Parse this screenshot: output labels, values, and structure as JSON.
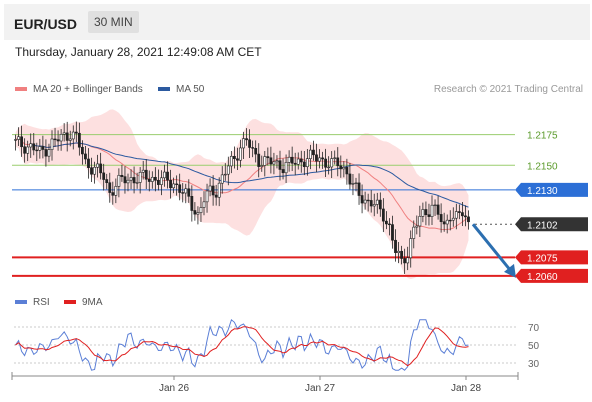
{
  "header": {
    "symbol": "EUR/USD",
    "timeframe": "30 MIN"
  },
  "datetime": "Thursday, January 28, 2021 12:49:08 AM CET",
  "legend_main": {
    "ma20_label": "MA 20 + Bollinger Bands",
    "ma50_label": "MA 50",
    "credit": "Research © 2021 Trading Central"
  },
  "legend_rsi": {
    "rsi_label": "RSI",
    "ma9_label": "9MA"
  },
  "colors": {
    "ma20": "#f08080",
    "bands": "#fcd6d6",
    "ma50": "#2c5aa0",
    "candle": "#222222",
    "pivot": "#2c6fd6",
    "resistance": "#9acd6e",
    "support": "#e02020",
    "rsi": "#5b7fd6",
    "rsi_ma": "#e02020",
    "arrow": "#2c6fb0"
  },
  "chart_data": [
    {
      "type": "candlestick",
      "name": "price",
      "x_tick_labels": [
        "Jan 26",
        "Jan 27",
        "Jan 28"
      ],
      "ylim": [
        1.2055,
        1.2195
      ],
      "levels": [
        {
          "value": 1.2175,
          "label": "1.2175",
          "kind": "resistance"
        },
        {
          "value": 1.215,
          "label": "1.2150",
          "kind": "resistance"
        },
        {
          "value": 1.213,
          "label": "1.2130",
          "kind": "pivot"
        },
        {
          "value": 1.2102,
          "label": "1.2102",
          "kind": "last"
        },
        {
          "value": 1.2075,
          "label": "1.2075",
          "kind": "support"
        },
        {
          "value": 1.206,
          "label": "1.2060",
          "kind": "support"
        }
      ],
      "close_anchors": [
        [
          0,
          1.2168
        ],
        [
          5,
          1.2165
        ],
        [
          8,
          1.216
        ],
        [
          12,
          1.2168
        ],
        [
          15,
          1.2172
        ],
        [
          18,
          1.2177
        ],
        [
          20,
          1.2172
        ],
        [
          23,
          1.2152
        ],
        [
          26,
          1.2148
        ],
        [
          29,
          1.214
        ],
        [
          31,
          1.2128
        ],
        [
          33,
          1.2135
        ],
        [
          36,
          1.2138
        ],
        [
          40,
          1.214
        ],
        [
          44,
          1.214
        ],
        [
          48,
          1.2138
        ],
        [
          52,
          1.2136
        ],
        [
          55,
          1.2128
        ],
        [
          58,
          1.2118
        ],
        [
          60,
          1.211
        ],
        [
          62,
          1.2122
        ],
        [
          64,
          1.2128
        ],
        [
          66,
          1.213
        ],
        [
          68,
          1.214
        ],
        [
          70,
          1.2148
        ],
        [
          72,
          1.2156
        ],
        [
          74,
          1.2166
        ],
        [
          76,
          1.217
        ],
        [
          78,
          1.216
        ],
        [
          80,
          1.2155
        ],
        [
          84,
          1.2152
        ],
        [
          88,
          1.215
        ],
        [
          92,
          1.2152
        ],
        [
          96,
          1.2156
        ],
        [
          100,
          1.2156
        ],
        [
          104,
          1.215
        ],
        [
          106,
          1.2152
        ],
        [
          109,
          1.2145
        ],
        [
          111,
          1.2132
        ],
        [
          113,
          1.2126
        ],
        [
          115,
          1.2122
        ],
        [
          117,
          1.212
        ],
        [
          119,
          1.2115
        ],
        [
          121,
          1.211
        ],
        [
          123,
          1.21
        ],
        [
          125,
          1.208
        ],
        [
          127,
          1.207
        ],
        [
          129,
          1.208
        ],
        [
          131,
          1.2098
        ],
        [
          133,
          1.2106
        ],
        [
          135,
          1.2112
        ],
        [
          137,
          1.2118
        ],
        [
          139,
          1.211
        ],
        [
          141,
          1.2098
        ],
        [
          143,
          1.2112
        ],
        [
          145,
          1.2108
        ],
        [
          147,
          1.211
        ],
        [
          149,
          1.2102
        ]
      ],
      "rsi_ylim": [
        20,
        80
      ],
      "rsi_ticks": [
        70,
        50,
        30
      ],
      "forecast_arrow": {
        "from": 1.2102,
        "to": 1.206
      }
    }
  ]
}
